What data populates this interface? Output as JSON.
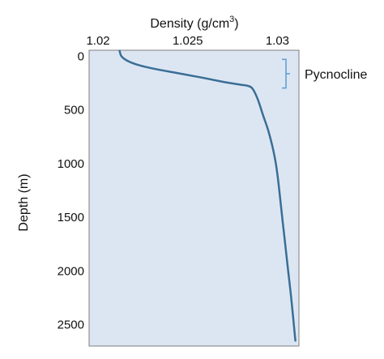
{
  "chart_data": {
    "type": "line",
    "title": "",
    "xlabel": "Density (g/cm",
    "xlabel_superscript": "3",
    "xlabel_suffix": ")",
    "ylabel": "Depth (m)",
    "x_axis_position": "top",
    "y_inverted": true,
    "xlim": [
      1.0195,
      1.0312
    ],
    "ylim": [
      -55,
      2700
    ],
    "x_ticks": [
      "1.02",
      "1.025",
      "1.03"
    ],
    "x_tick_values": [
      1.02,
      1.025,
      1.03
    ],
    "y_ticks": [
      "0",
      "500",
      "1000",
      "1500",
      "2000",
      "2500"
    ],
    "y_tick_values": [
      0,
      500,
      1000,
      1500,
      2000,
      2500
    ],
    "grid": false,
    "background_color": "#dce6f2",
    "line_color": "#3a6e96",
    "series": [
      {
        "x": [
          1.0212,
          1.0213,
          1.0216,
          1.0222,
          1.0232,
          1.0245,
          1.0258,
          1.027,
          1.0279,
          1.0283,
          1.0286,
          1.0289,
          1.0292,
          1.0295,
          1.0298,
          1.03,
          1.0302,
          1.0304,
          1.0306,
          1.0308,
          1.031
        ],
        "y": [
          -50,
          0,
          40,
          80,
          120,
          160,
          200,
          240,
          265,
          275,
          300,
          400,
          550,
          700,
          900,
          1100,
          1400,
          1700,
          2000,
          2300,
          2650
        ]
      }
    ],
    "annotations": [
      {
        "text": "Pycnocline",
        "y_range": [
          0,
          320
        ]
      }
    ]
  }
}
